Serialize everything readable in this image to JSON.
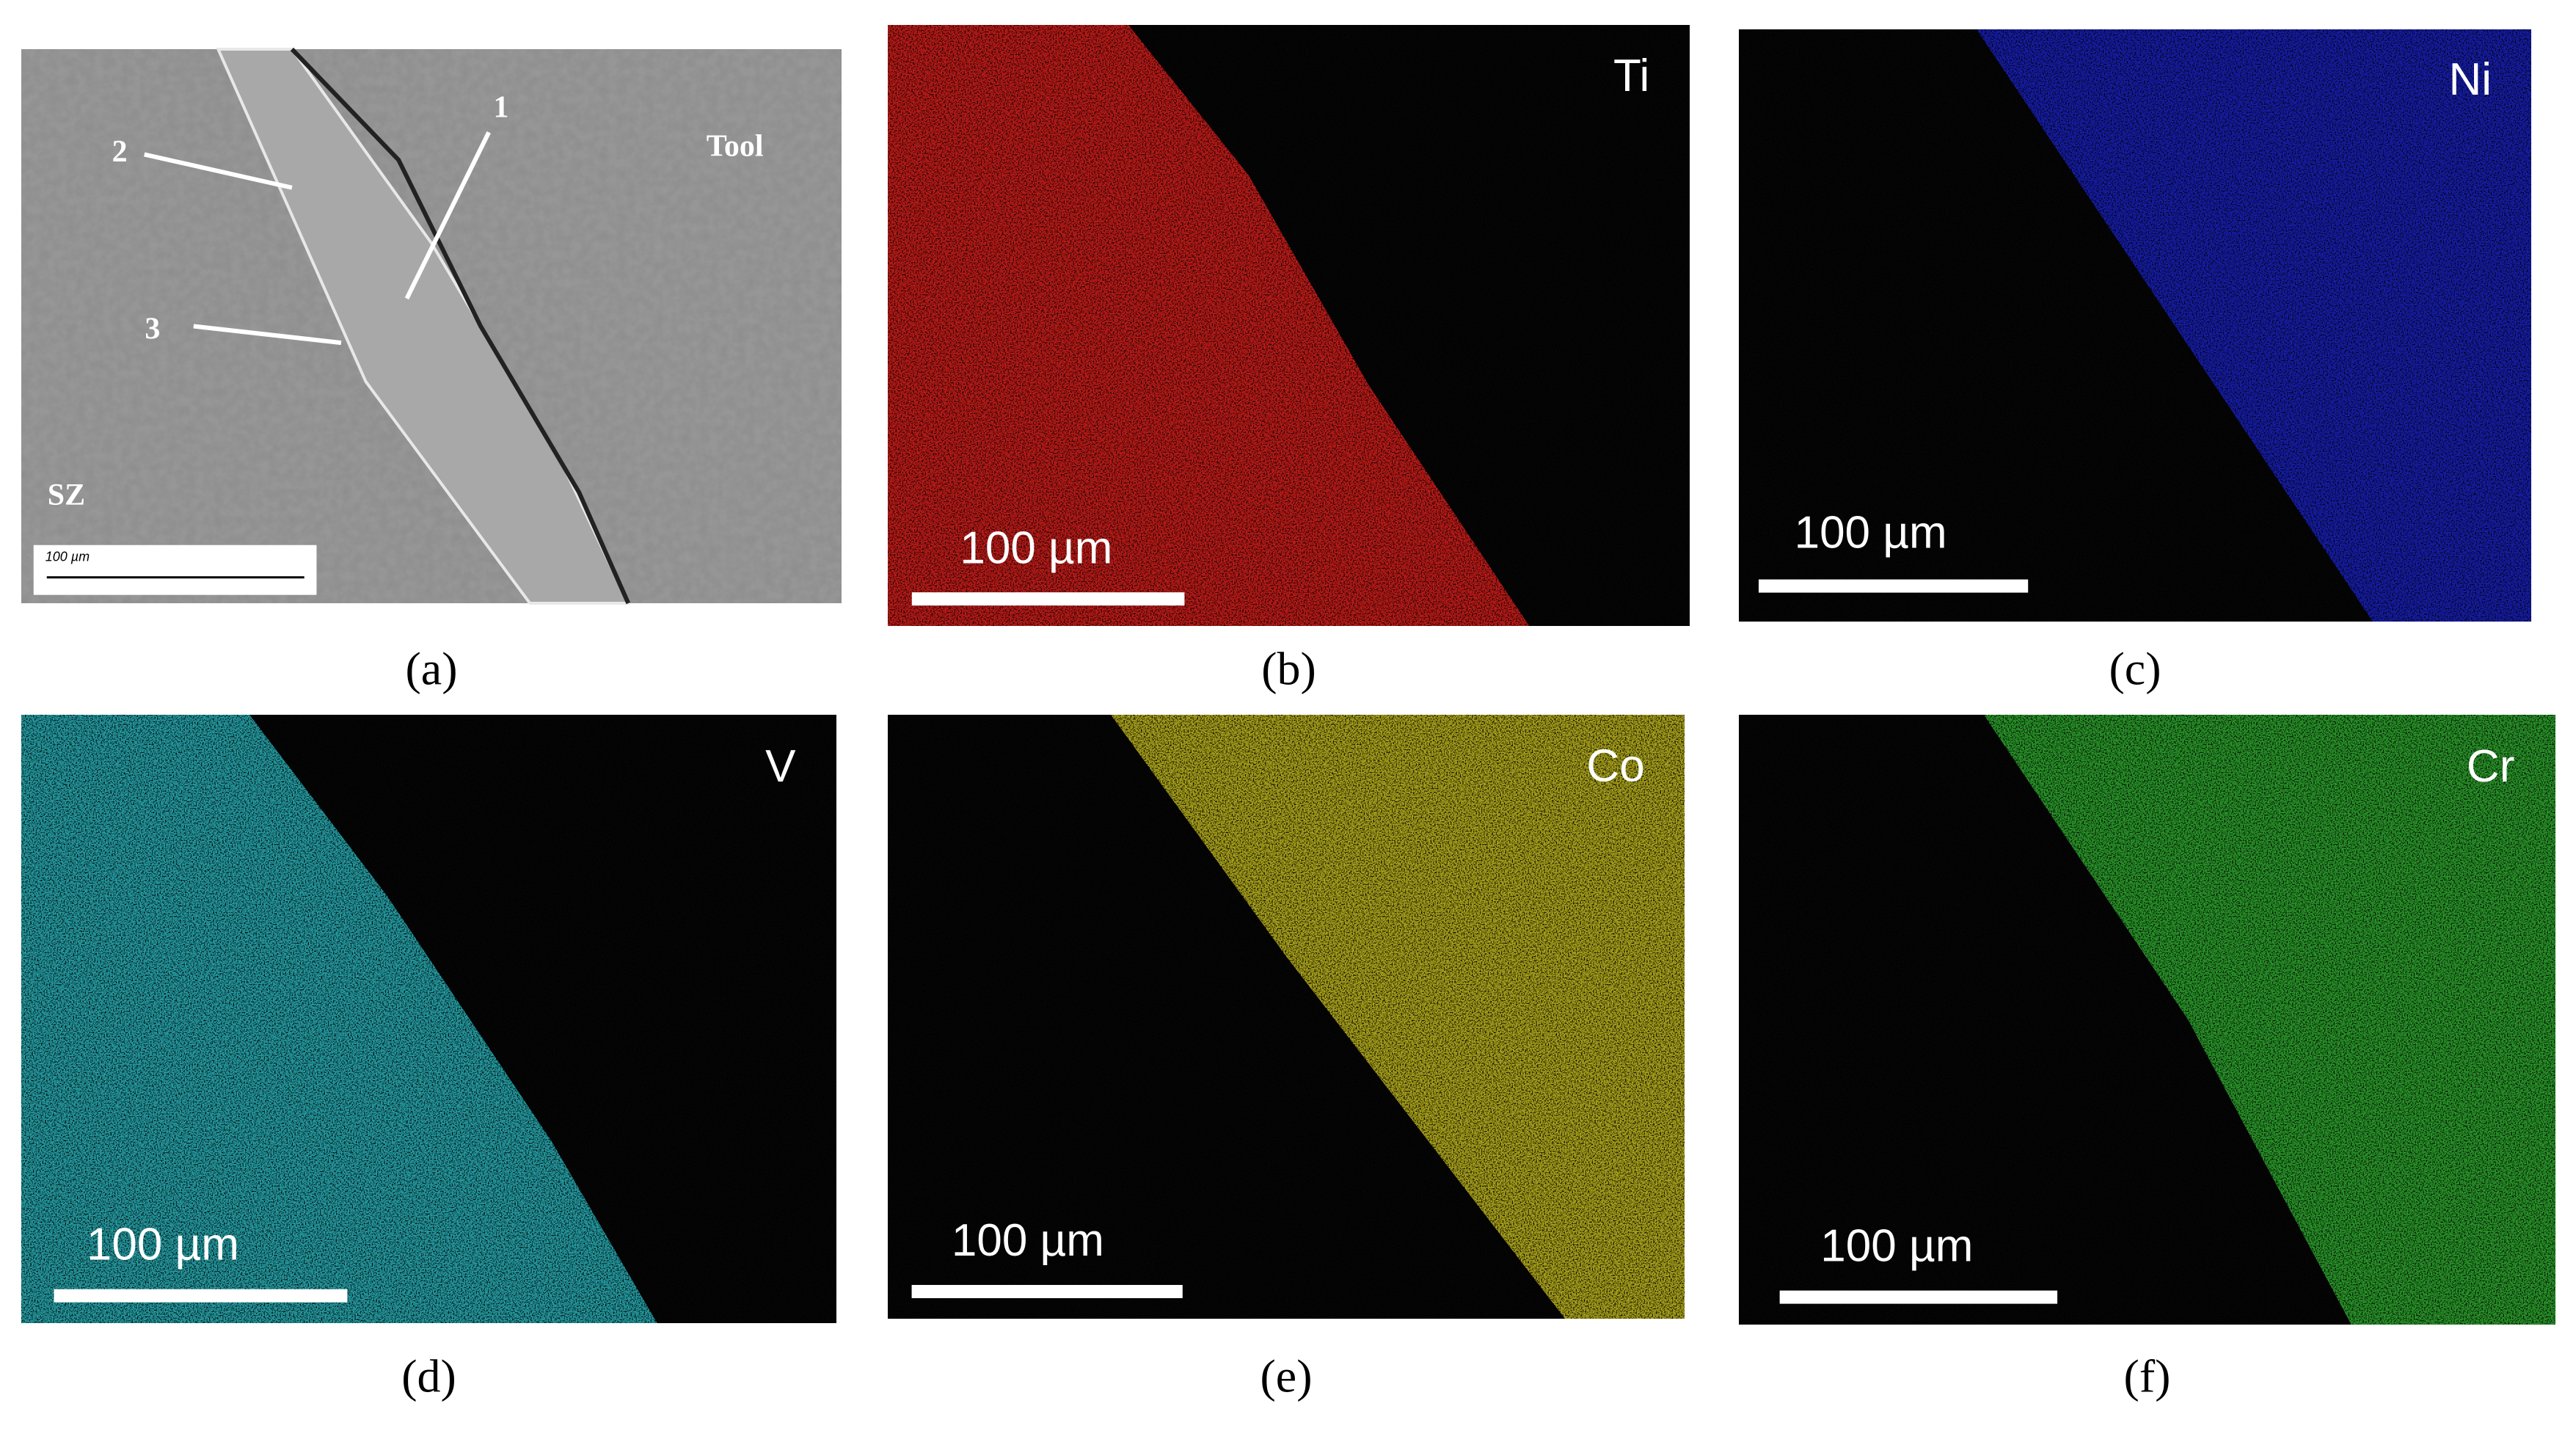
{
  "panels": [
    {
      "caption": "(a)",
      "annotations": [
        "1",
        "2",
        "3"
      ],
      "labels": [
        "Tool",
        "SZ"
      ],
      "scale_label": "100 µm"
    },
    {
      "caption": "(b)",
      "element": "Ti",
      "scale_label": "100 µm",
      "color": "#e0201c"
    },
    {
      "caption": "(c)",
      "element": "Ni",
      "scale_label": "100 µm",
      "color": "#1a22c8"
    },
    {
      "caption": "(d)",
      "element": "V",
      "scale_label": "100 µm",
      "color": "#2ab8c0"
    },
    {
      "caption": "(e)",
      "element": "Co",
      "scale_label": "100 µm",
      "color": "#c8c020"
    },
    {
      "caption": "(f)",
      "element": "Cr",
      "scale_label": "100 µm",
      "color": "#30b030"
    }
  ]
}
